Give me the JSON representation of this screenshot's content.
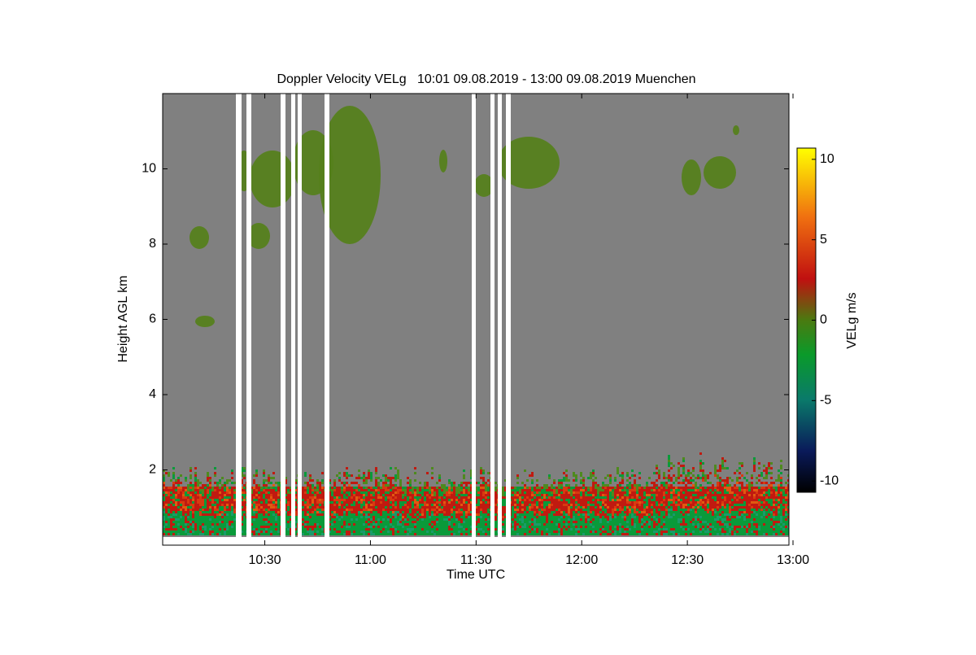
{
  "chart_data": {
    "type": "heatmap",
    "title": "Doppler Velocity VELg   10:01 09.08.2019 - 13:00 09.08.2019 Muenchen",
    "x_label": "Time UTC",
    "y_label": "Height AGL km",
    "colorbar_label": "VELg m/s",
    "xlim": [
      601,
      780
    ],
    "xticks": [
      {
        "value": 630,
        "label": "10:30"
      },
      {
        "value": 660,
        "label": "11:00"
      },
      {
        "value": 690,
        "label": "11:30"
      },
      {
        "value": 720,
        "label": "12:00"
      },
      {
        "value": 750,
        "label": "12:30"
      },
      {
        "value": 780,
        "label": "13:00"
      }
    ],
    "ylim": [
      0,
      12
    ],
    "yticks": [
      2,
      4,
      6,
      8,
      10
    ],
    "clim": [
      -10.7,
      10.7
    ],
    "cticks": [
      -10,
      -5,
      0,
      5,
      10
    ]
  }
}
